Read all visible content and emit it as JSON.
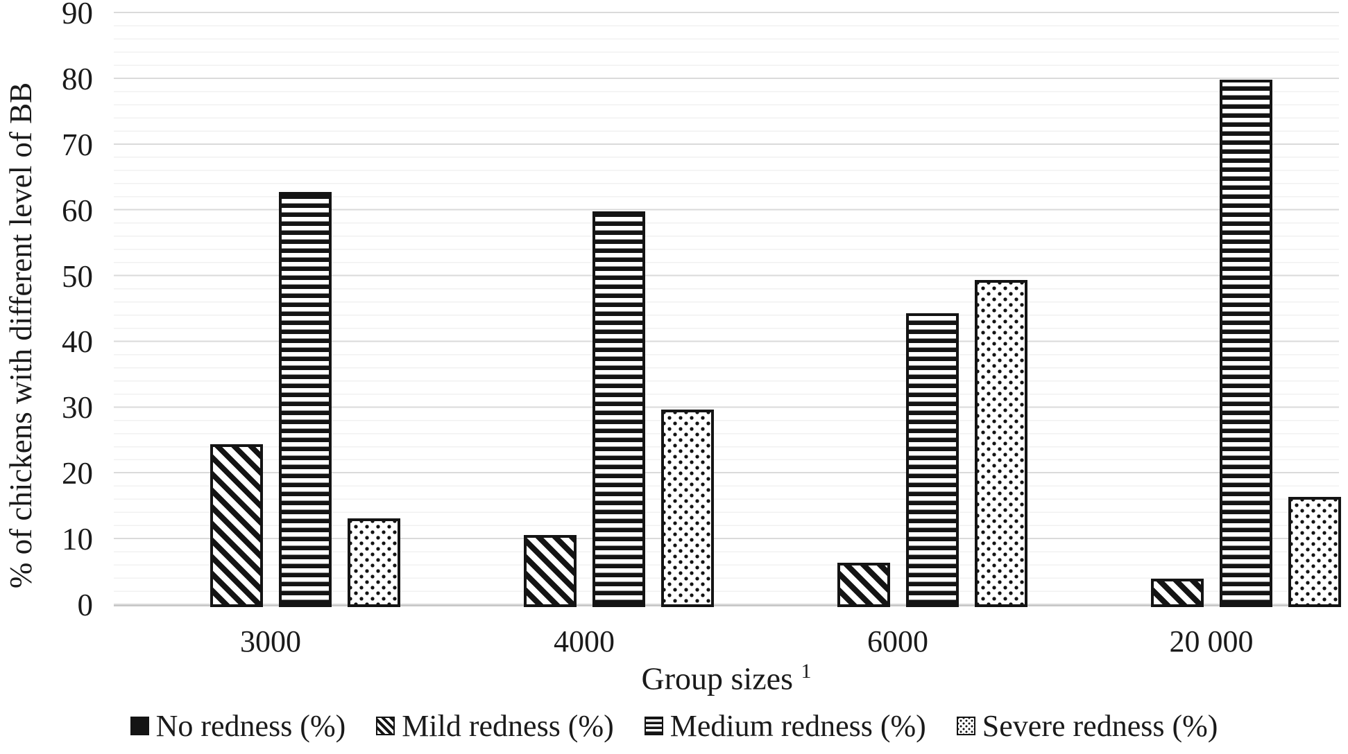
{
  "chart_data": {
    "type": "bar",
    "title": "",
    "xlabel": "Group sizes",
    "xlabel_superscript": "1",
    "ylabel": "% of chickens with different level of BB",
    "categories": [
      "3000",
      "4000",
      "6000",
      "20 000"
    ],
    "series": [
      {
        "name": "No redness (%)",
        "pattern": "solid",
        "values": [
          0,
          0,
          0,
          0
        ]
      },
      {
        "name": "Mild redness (%)",
        "pattern": "diagonal-stripes",
        "values": [
          24.4,
          10.6,
          6.4,
          4.0
        ]
      },
      {
        "name": "Medium redness (%)",
        "pattern": "horizontal-stripes",
        "values": [
          62.8,
          59.9,
          44.4,
          79.9
        ]
      },
      {
        "name": "Severe redness (%)",
        "pattern": "dots",
        "values": [
          13.2,
          29.7,
          49.4,
          16.4
        ]
      }
    ],
    "ylim": [
      0,
      90
    ],
    "yticks": [
      0,
      10,
      20,
      30,
      40,
      50,
      60,
      70,
      80,
      90
    ],
    "ytick_interval": 10,
    "minor_gridline_interval": 2,
    "grid": true,
    "legend_position": "bottom",
    "colors": {
      "bar": "#141414",
      "text": "#1a1a1a",
      "major_gridline": "#dadada",
      "minor_gridline": "#f1f1f1",
      "axis_line": "#c6c6c6",
      "background": "#ffffff"
    }
  }
}
